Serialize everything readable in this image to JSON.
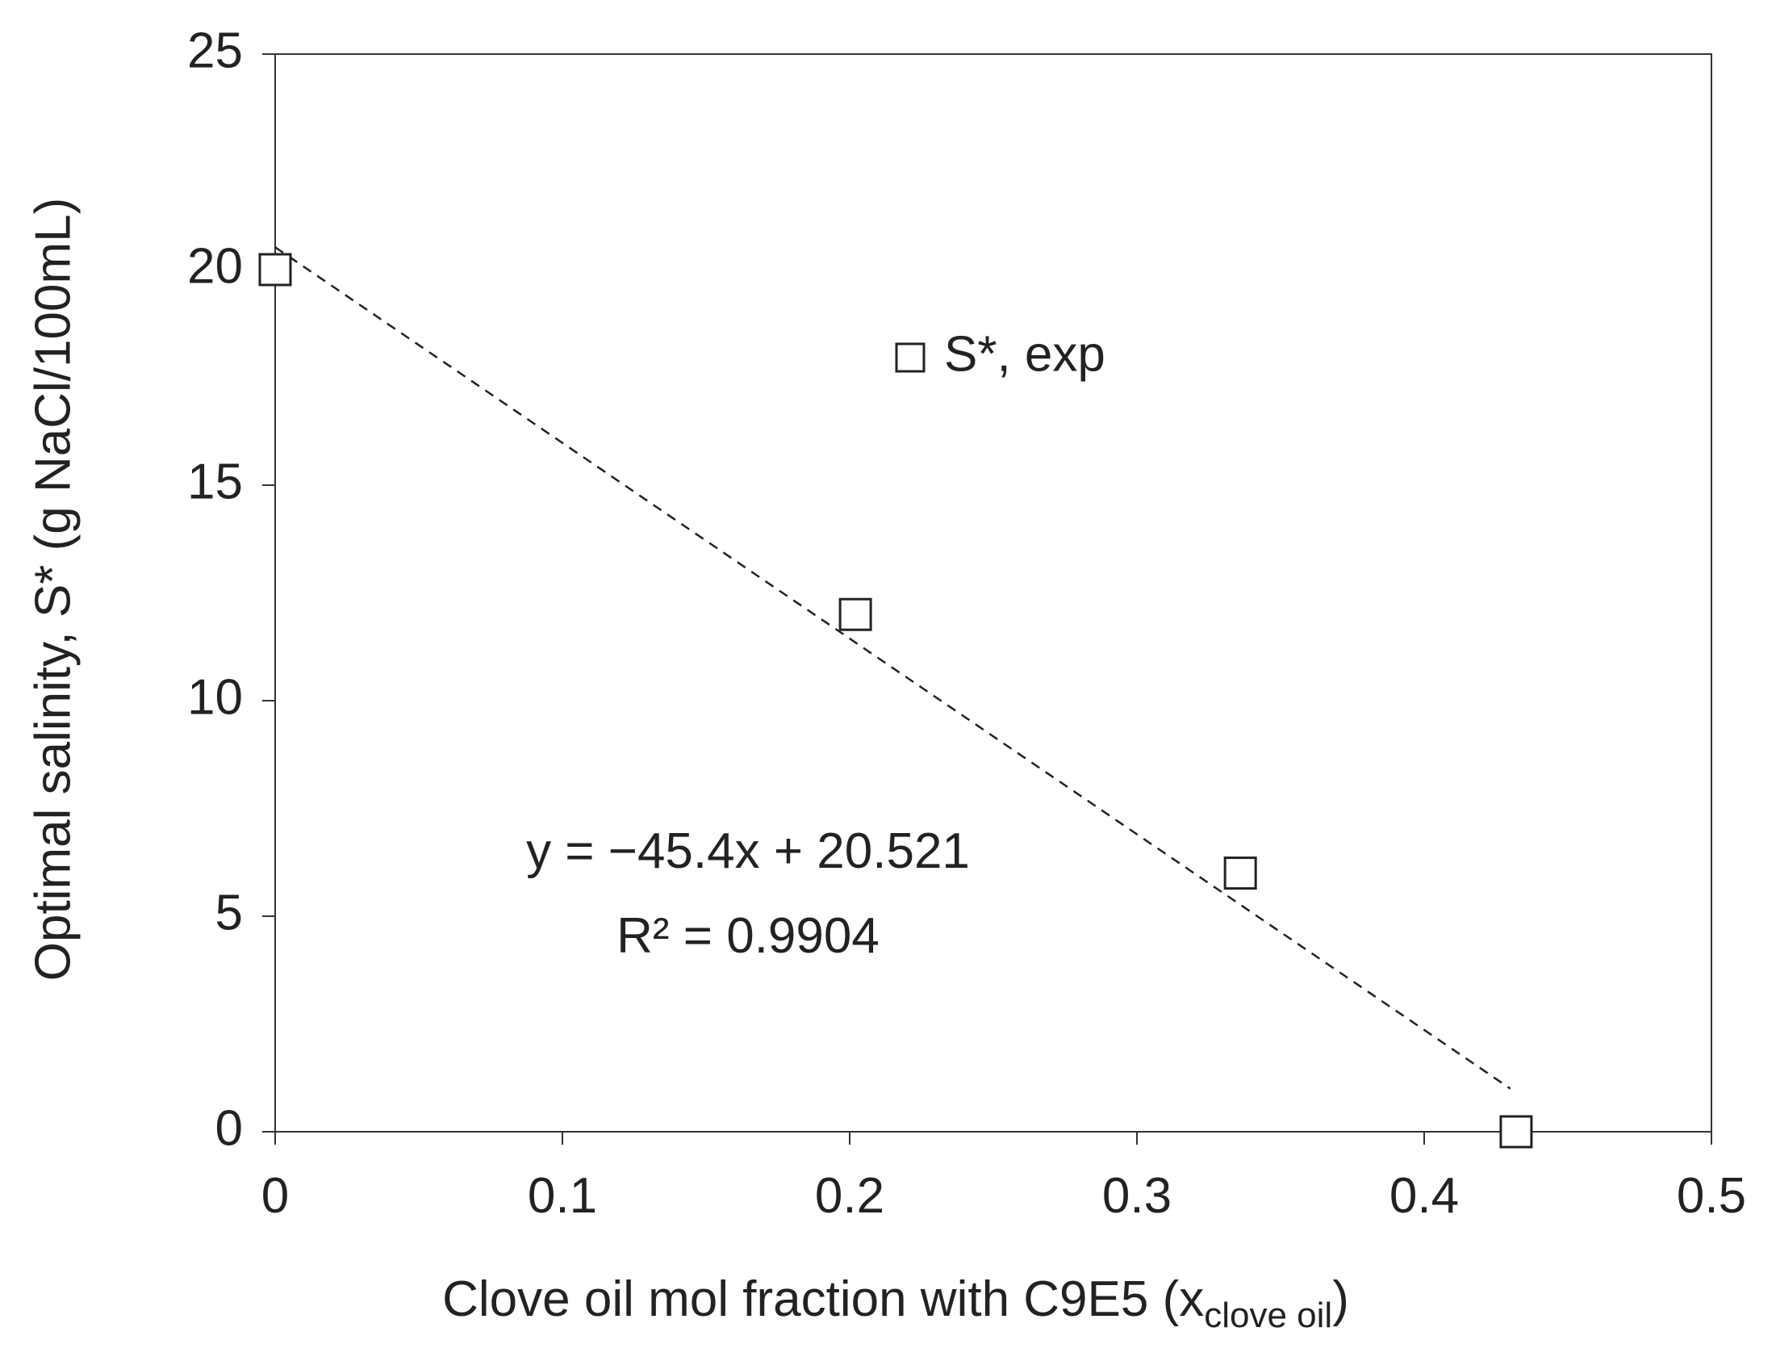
{
  "chart_data": {
    "type": "scatter",
    "x_label": {
      "text": "Clove oil mol fraction with C9E5  (x",
      "sub": "clove oil",
      "end": ")"
    },
    "y_label": "Optimal salinity, S* (g NaCl/100mL)",
    "series": [
      {
        "name": "S*, exp",
        "color": "#222222",
        "x": [
          0,
          0.202,
          0.336,
          0.432
        ],
        "values": [
          20,
          12,
          6,
          0
        ]
      }
    ],
    "trendline": {
      "x": [
        0,
        0.43
      ],
      "values": [
        20.52,
        1.0
      ],
      "color": "#222222"
    },
    "annotations": [
      "y = −45.4x + 20.521",
      "R² = 0.9904"
    ],
    "xlim": [
      0,
      0.5
    ],
    "xticks": [
      0,
      0.1,
      0.2,
      0.3,
      0.4,
      0.5
    ],
    "ylim": [
      0,
      25
    ],
    "yticks": [
      0,
      5,
      10,
      15,
      20,
      25
    ],
    "grid": false
  }
}
